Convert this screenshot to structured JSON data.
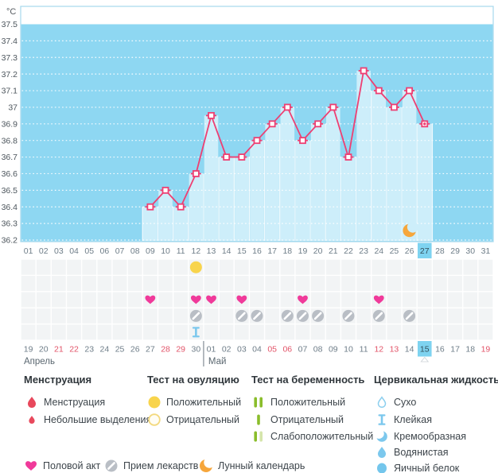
{
  "colors": {
    "chart_bg": "#8ed7f2",
    "bar": "#cdeefa",
    "chart_border": "#a6d8ec",
    "line": "#ee3f72",
    "heart": "#f03a9a",
    "pill": "#b9bec5",
    "pill_slash": "#ffffff",
    "moon": "#f6a63b",
    "ovu_yellow": "#f8d44c",
    "ovu_outline": "#f3d97e",
    "preg_green": "#8abd2b",
    "preg_pale": "#d5e5ab",
    "cervical_blue": "#7cc8ed",
    "drop_red": "#e8485c",
    "red_date": "#e25368",
    "highlight": "#7ed3f0",
    "day_text": "#6e7d88",
    "day_text_active": "#34505c",
    "tick_text": "#4c555c",
    "month_text": "#5a6770",
    "separator": "#6a7680",
    "cell_bg": "#f2f4f5"
  },
  "chart_data": {
    "type": "line",
    "unit": "°C",
    "ylim": [
      36.2,
      37.5
    ],
    "grid": "dotted-horizontal",
    "yticks": [
      "37.5",
      "37.4",
      "37.3",
      "37.2",
      "37.1",
      "37",
      "36.9",
      "36.8",
      "36.7",
      "36.6",
      "36.5",
      "36.4",
      "36.3",
      "36.2"
    ],
    "cycle_day_labels": [
      "01",
      "02",
      "03",
      "04",
      "05",
      "06",
      "07",
      "08",
      "09",
      "10",
      "11",
      "12",
      "13",
      "14",
      "15",
      "16",
      "17",
      "18",
      "19",
      "20",
      "21",
      "22",
      "23",
      "24",
      "25",
      "26",
      "27",
      "28",
      "29",
      "30",
      "31"
    ],
    "current_cycle_day": 27,
    "temperature": {
      "days": [
        9,
        10,
        11,
        12,
        13,
        14,
        15,
        16,
        17,
        18,
        19,
        20,
        21,
        22,
        23,
        24,
        25,
        26,
        27
      ],
      "values": [
        36.4,
        36.5,
        36.4,
        36.6,
        36.95,
        36.7,
        36.7,
        36.8,
        36.9,
        37.0,
        36.8,
        36.9,
        37.0,
        36.7,
        37.22,
        37.1,
        37.0,
        37.1,
        36.9
      ]
    },
    "events": {
      "ovulation_test_positive_days": [
        12
      ],
      "intercourse_days": [
        9,
        12,
        13,
        15,
        19,
        24
      ],
      "medication_days": [
        12,
        15,
        16,
        18,
        19,
        20,
        22,
        24,
        26
      ],
      "cervical_sticky_days": [
        12
      ],
      "lunar_calendar_day": 26
    },
    "calendar": {
      "april_label": "Апрель",
      "may_label": "Май",
      "april_dates": [
        "19",
        "20",
        "21",
        "22",
        "23",
        "24",
        "25",
        "26",
        "27",
        "28",
        "29",
        "30"
      ],
      "may_dates": [
        "01",
        "02",
        "03",
        "04",
        "05",
        "06",
        "07",
        "08",
        "09",
        "10",
        "11",
        "12",
        "13",
        "14",
        "15",
        "16",
        "17",
        "18",
        "19"
      ],
      "april_red": [
        "21",
        "22",
        "28",
        "29"
      ],
      "may_red": [
        "05",
        "06",
        "12",
        "13",
        "19"
      ],
      "today_may_date": "15"
    }
  },
  "legend": {
    "menstruation": {
      "header": "Менструация",
      "items": [
        {
          "label": "Менструация"
        },
        {
          "label": "Небольшие выделения"
        }
      ]
    },
    "ovulation": {
      "header": "Тест на овуляцию",
      "items": [
        {
          "label": "Положительный"
        },
        {
          "label": "Отрицательный"
        }
      ]
    },
    "pregnancy": {
      "header": "Тест на беременность",
      "items": [
        {
          "label": "Положительный"
        },
        {
          "label": "Отрицательный"
        },
        {
          "label": "Слабоположительный"
        }
      ]
    },
    "cervical": {
      "header": "Цервикальная жидкость",
      "items": [
        {
          "label": "Сухо"
        },
        {
          "label": "Клейкая"
        },
        {
          "label": "Кремообразная"
        },
        {
          "label": "Водянистая"
        },
        {
          "label": "Яичный белок"
        }
      ]
    },
    "misc": {
      "intercourse": "Половой акт",
      "medication": "Прием лекарств",
      "lunar": "Лунный календарь"
    }
  }
}
